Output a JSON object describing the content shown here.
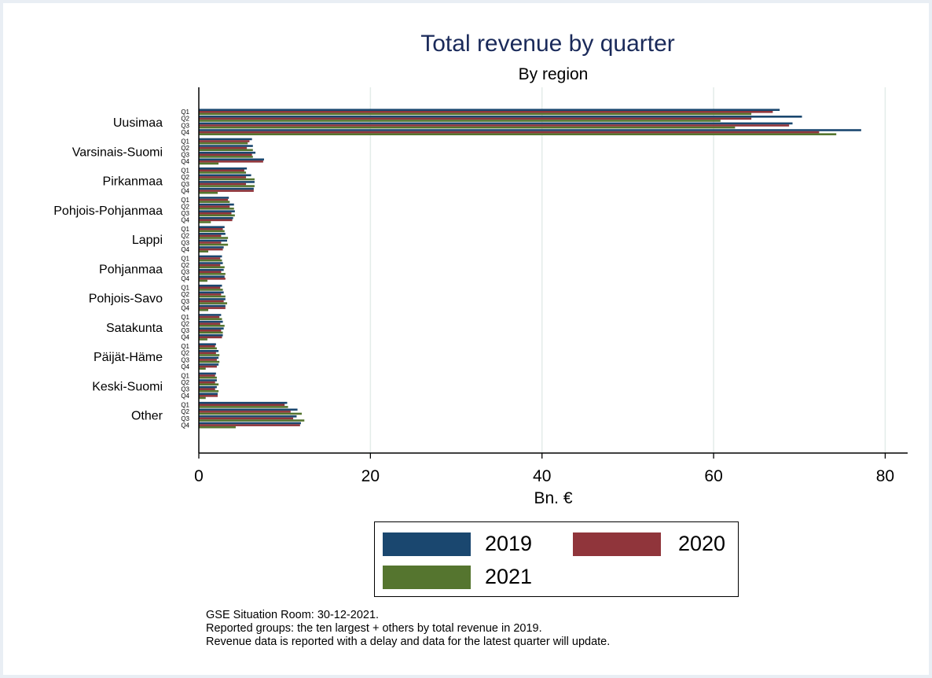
{
  "chart_data": {
    "type": "bar",
    "orientation": "horizontal",
    "title": "Total revenue by quarter",
    "subtitle": "By region",
    "xlabel": "Bn. €",
    "ylabel": "",
    "xlim": [
      0,
      80
    ],
    "xticks": [
      0,
      20,
      40,
      60,
      80
    ],
    "grid": true,
    "legend_position": "bottom",
    "quarters": [
      "Q1",
      "Q2",
      "Q3",
      "Q4"
    ],
    "categories": [
      "Uusimaa",
      "Varsinais-Suomi",
      "Pirkanmaa",
      "Pohjois-Pohjanmaa",
      "Lappi",
      "Pohjanmaa",
      "Pohjois-Savo",
      "Satakunta",
      "Päijät-Häme",
      "Keski-Suomi",
      "Other"
    ],
    "series": [
      {
        "name": "2019",
        "color": "#1a476f",
        "values": [
          [
            67.7,
            70.3,
            69.2,
            77.2
          ],
          [
            6.2,
            6.3,
            6.6,
            7.6
          ],
          [
            5.6,
            6.1,
            6.5,
            6.4
          ],
          [
            3.5,
            4.1,
            4.2,
            4.0
          ],
          [
            3.0,
            3.1,
            3.3,
            2.9
          ],
          [
            2.7,
            2.8,
            2.9,
            3.0
          ],
          [
            2.7,
            2.9,
            3.1,
            3.1
          ],
          [
            2.6,
            2.8,
            2.9,
            2.8
          ],
          [
            2.0,
            2.3,
            2.3,
            2.3
          ],
          [
            2.0,
            2.1,
            2.1,
            2.2
          ],
          [
            10.3,
            11.5,
            11.4,
            11.9
          ]
        ]
      },
      {
        "name": "2020",
        "color": "#90353b",
        "values": [
          [
            66.9,
            64.4,
            68.8,
            72.3
          ],
          [
            5.9,
            5.6,
            6.2,
            7.5
          ],
          [
            5.3,
            5.5,
            5.5,
            6.4
          ],
          [
            3.4,
            3.6,
            3.8,
            3.9
          ],
          [
            2.8,
            2.6,
            2.6,
            2.8
          ],
          [
            2.5,
            2.5,
            2.6,
            3.1
          ],
          [
            2.5,
            2.6,
            2.9,
            3.1
          ],
          [
            2.4,
            2.5,
            2.6,
            2.7
          ],
          [
            1.9,
            2.0,
            2.1,
            2.1
          ],
          [
            1.9,
            1.9,
            1.9,
            2.2
          ],
          [
            10.0,
            10.7,
            11.0,
            11.8
          ]
        ]
      },
      {
        "name": "2021",
        "color": "#55752f",
        "values": [
          [
            64.4,
            60.8,
            62.5,
            74.3
          ],
          [
            5.7,
            6.3,
            6.3,
            2.3
          ],
          [
            5.5,
            6.5,
            6.5,
            2.2
          ],
          [
            3.6,
            4.1,
            4.2,
            1.4
          ],
          [
            3.0,
            3.4,
            3.4,
            1.1
          ],
          [
            2.7,
            3.0,
            3.1,
            1.0
          ],
          [
            2.8,
            3.1,
            3.3,
            1.1
          ],
          [
            2.7,
            3.0,
            2.8,
            1.0
          ],
          [
            2.1,
            2.4,
            2.4,
            0.8
          ],
          [
            2.1,
            2.3,
            2.3,
            0.8
          ],
          [
            10.4,
            12.0,
            12.3,
            4.3
          ]
        ]
      }
    ]
  },
  "legend": {
    "items": [
      {
        "label": "2019",
        "color": "#1a476f"
      },
      {
        "label": "2020",
        "color": "#90353b"
      },
      {
        "label": "2021",
        "color": "#55752f"
      }
    ]
  },
  "notes": [
    "GSE Situation Room: 30-12-2021.",
    "Reported groups: the ten largest + others by total revenue in 2019.",
    "Revenue data is reported with a delay and data for the latest quarter will update."
  ]
}
